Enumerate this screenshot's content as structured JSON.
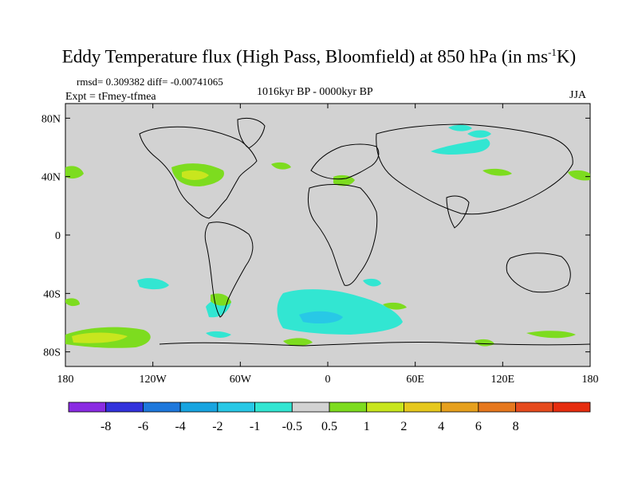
{
  "figure": {
    "title_main": "Eddy Temperature flux (High Pass, Bloomfield) at 850 hPa (in ms",
    "title_sup": "-1",
    "title_end": "K)",
    "stats": "rmsd= 0.309382 diff= -0.00741065",
    "expt": "Expt = tFmey-tfmea",
    "period": "1016kyr BP - 0000kyr BP",
    "season": "JJA"
  },
  "map": {
    "lon_ticks": [
      {
        "lon": -180,
        "label": "180"
      },
      {
        "lon": -120,
        "label": "120W"
      },
      {
        "lon": -60,
        "label": "60W"
      },
      {
        "lon": 0,
        "label": "0"
      },
      {
        "lon": 60,
        "label": "60E"
      },
      {
        "lon": 120,
        "label": "120E"
      },
      {
        "lon": 180,
        "label": "180"
      }
    ],
    "lat_ticks": [
      {
        "lat": 80,
        "label": "80N"
      },
      {
        "lat": 40,
        "label": "40N"
      },
      {
        "lat": 0,
        "label": "0"
      },
      {
        "lat": -40,
        "label": "40S"
      },
      {
        "lat": -80,
        "label": "80S"
      }
    ],
    "lon_range": [
      -180,
      180
    ],
    "lat_range": [
      -90,
      90
    ],
    "background_color": "#d2d2d2"
  },
  "colorbar": {
    "colors": [
      "#8a2be2",
      "#3232dc",
      "#1e78dc",
      "#18a4e0",
      "#28c8e6",
      "#32e6d2",
      "#d2d2d2",
      "#7ddc1f",
      "#c8e61e",
      "#e6c81e",
      "#e6a01e",
      "#e6781e",
      "#e64b1e",
      "#e62d0f"
    ],
    "labels": [
      "-8",
      "-6",
      "-4",
      "-2",
      "-1",
      "-0.5",
      "0.5",
      "1",
      "2",
      "4",
      "6",
      "8"
    ]
  }
}
